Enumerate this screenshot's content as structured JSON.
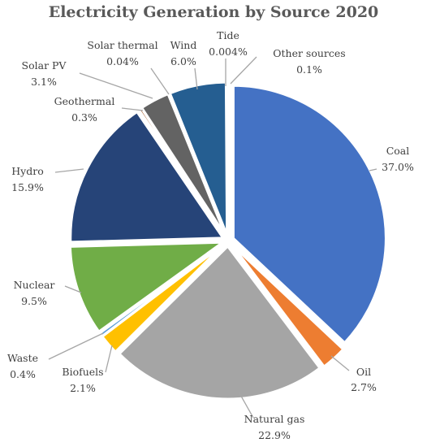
{
  "chart_data": {
    "type": "pie",
    "title": "Electricity Generation by Source 2020",
    "slices": [
      {
        "label": "Coal",
        "value": 37.0,
        "value_label": "37.0%",
        "color": "#4472C4"
      },
      {
        "label": "Oil",
        "value": 2.7,
        "value_label": "2.7%",
        "color": "#ED7D31"
      },
      {
        "label": "Natural gas",
        "value": 22.9,
        "value_label": "22.9%",
        "color": "#A5A5A5"
      },
      {
        "label": "Biofuels",
        "value": 2.1,
        "value_label": "2.1%",
        "color": "#FFC000"
      },
      {
        "label": "Waste",
        "value": 0.4,
        "value_label": "0.4%",
        "color": "#5B9BD5"
      },
      {
        "label": "Nuclear",
        "value": 9.5,
        "value_label": "9.5%",
        "color": "#70AD47"
      },
      {
        "label": "Hydro",
        "value": 15.9,
        "value_label": "15.9%",
        "color": "#264478"
      },
      {
        "label": "Geothermal",
        "value": 0.3,
        "value_label": "0.3%",
        "color": "#9E480E"
      },
      {
        "label": "Solar PV",
        "value": 3.1,
        "value_label": "3.1%",
        "color": "#636363"
      },
      {
        "label": "Solar thermal",
        "value": 0.04,
        "value_label": "0.04%",
        "color": "#997300"
      },
      {
        "label": "Wind",
        "value": 6.0,
        "value_label": "6.0%",
        "color": "#255E91"
      },
      {
        "label": "Tide",
        "value": 0.004,
        "value_label": "0.004%",
        "color": "#43682B"
      },
      {
        "label": "Other sources",
        "value": 0.1,
        "value_label": "0.1%",
        "color": "#698ED0"
      }
    ]
  }
}
